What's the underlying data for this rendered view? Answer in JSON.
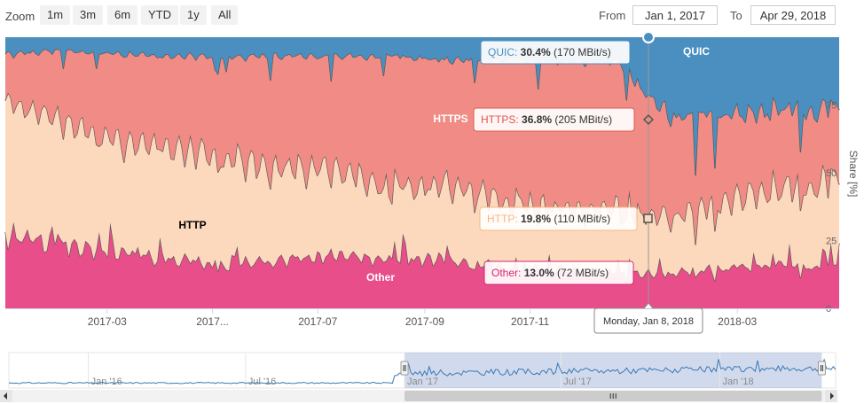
{
  "toolbar": {
    "zoom_label": "Zoom",
    "buttons": [
      "1m",
      "3m",
      "6m",
      "YTD",
      "1y",
      "All"
    ],
    "from_label": "From",
    "from_value": "Jan 1, 2017",
    "to_label": "To",
    "to_value": "Apr 29, 2018"
  },
  "chart_data": {
    "type": "area",
    "stacking": "percent",
    "x_range": [
      "2017-01-01",
      "2018-04-29"
    ],
    "x_tick_labels": [
      "2017-03",
      "2017...",
      "2017-07",
      "2017-09",
      "2017-11",
      "",
      "2018-03"
    ],
    "y_axis": {
      "label": "Share [%]",
      "ticks": [
        0,
        25,
        50,
        75
      ],
      "ylim": [
        0,
        100
      ],
      "position": "right"
    },
    "series": [
      {
        "name": "Other",
        "color": "#e84e8a",
        "approx_share_by_month": [
          27,
          24,
          21,
          18,
          16,
          18,
          20,
          18,
          18,
          15,
          14,
          13,
          13,
          15,
          16,
          16
        ]
      },
      {
        "name": "HTTP",
        "color": "#fcd9bd",
        "approx_share_by_month": [
          50,
          46,
          41,
          42,
          40,
          34,
          32,
          26,
          28,
          25,
          22,
          23,
          20,
          25,
          28,
          30
        ]
      },
      {
        "name": "HTTPS",
        "color": "#f08c85",
        "approx_share_by_month": [
          17,
          25,
          32,
          33,
          37,
          41,
          41,
          49,
          46,
          52,
          55,
          55,
          37,
          31,
          29,
          27
        ]
      },
      {
        "name": "QUIC",
        "color": "#4a8fbf",
        "approx_share_by_month": [
          6,
          5,
          6,
          7,
          7,
          7,
          7,
          7,
          8,
          8,
          9,
          9,
          30,
          29,
          27,
          27
        ]
      }
    ],
    "series_labels": [
      "QUIC",
      "HTTPS",
      "HTTP",
      "Other"
    ],
    "tooltip": {
      "date": "Monday, Jan 8, 2018",
      "rows": [
        {
          "series": "QUIC",
          "percent": "30.4%",
          "rate": "(170 MBit/s)",
          "color": "#4a8fbf"
        },
        {
          "series": "HTTPS",
          "percent": "36.8%",
          "rate": "(205 MBit/s)",
          "color": "#e0574f"
        },
        {
          "series": "HTTP",
          "percent": "19.8%",
          "rate": "(110 MBit/s)",
          "color": "#f7b77f"
        },
        {
          "series": "Other",
          "percent": "13.0%",
          "rate": "(72 MBit/s)",
          "color": "#d6246f"
        }
      ]
    },
    "navigator": {
      "labels": [
        "Jan '16",
        "Jul '16",
        "Jan '17",
        "Jul '17",
        "Jan '18"
      ],
      "selected_range": [
        "2017-01-01",
        "2018-04-29"
      ]
    }
  }
}
